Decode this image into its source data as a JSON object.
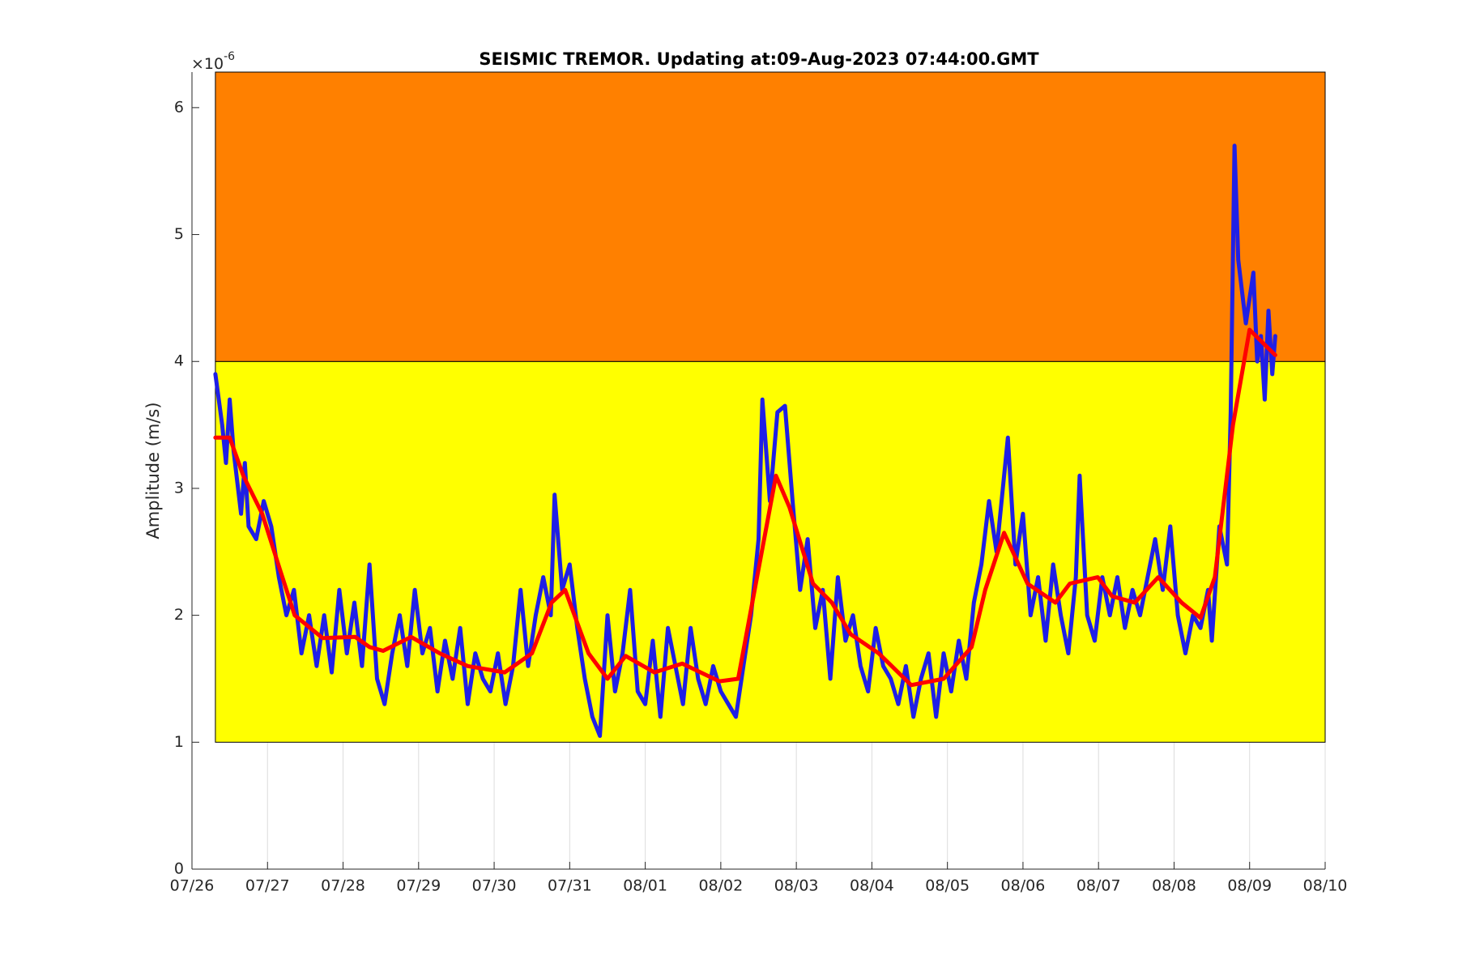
{
  "chart_data": {
    "type": "line",
    "title": "SEISMIC TREMOR. Updating at:09-Aug-2023 07:44:00.GMT",
    "ylabel": "Amplitude (m/s)",
    "y_multiplier": "×10",
    "y_exponent": "-6",
    "xlim": [
      0,
      15
    ],
    "xticks": [
      {
        "value": 0,
        "label": "07/26"
      },
      {
        "value": 1,
        "label": "07/27"
      },
      {
        "value": 2,
        "label": "07/28"
      },
      {
        "value": 3,
        "label": "07/29"
      },
      {
        "value": 4,
        "label": "07/30"
      },
      {
        "value": 5,
        "label": "07/31"
      },
      {
        "value": 6,
        "label": "08/01"
      },
      {
        "value": 7,
        "label": "08/02"
      },
      {
        "value": 8,
        "label": "08/03"
      },
      {
        "value": 9,
        "label": "08/04"
      },
      {
        "value": 10,
        "label": "08/05"
      },
      {
        "value": 11,
        "label": "08/06"
      },
      {
        "value": 12,
        "label": "08/07"
      },
      {
        "value": 13,
        "label": "08/08"
      },
      {
        "value": 14,
        "label": "08/09"
      },
      {
        "value": 15,
        "label": "08/10"
      }
    ],
    "ylim": [
      0,
      6.28
    ],
    "yticks": [
      0,
      1,
      2,
      3,
      4,
      5,
      6
    ],
    "xgrid": true,
    "bands": [
      {
        "from": 1,
        "to": 4,
        "xlim": [
          0.31,
          15
        ],
        "color": "#ffff00"
      },
      {
        "from": 4,
        "to": 6.28,
        "xlim": [
          0.31,
          15
        ],
        "color": "#ff8000"
      }
    ],
    "series": [
      {
        "color": "#1f1fe6",
        "width": 5,
        "x": [
          0.31,
          0.4,
          0.45,
          0.5,
          0.55,
          0.65,
          0.7,
          0.75,
          0.85,
          0.95,
          1.05,
          1.15,
          1.25,
          1.35,
          1.45,
          1.55,
          1.65,
          1.75,
          1.85,
          1.95,
          2.05,
          2.15,
          2.25,
          2.35,
          2.45,
          2.55,
          2.65,
          2.75,
          2.85,
          2.95,
          3.05,
          3.15,
          3.25,
          3.35,
          3.45,
          3.55,
          3.65,
          3.75,
          3.85,
          3.95,
          4.05,
          4.15,
          4.25,
          4.35,
          4.45,
          4.55,
          4.65,
          4.75,
          4.8,
          4.9,
          5.0,
          5.1,
          5.2,
          5.3,
          5.4,
          5.5,
          5.6,
          5.7,
          5.8,
          5.9,
          6.0,
          6.1,
          6.2,
          6.3,
          6.4,
          6.5,
          6.6,
          6.7,
          6.8,
          6.9,
          7.0,
          7.1,
          7.2,
          7.3,
          7.4,
          7.5,
          7.55,
          7.65,
          7.75,
          7.85,
          7.95,
          8.05,
          8.15,
          8.25,
          8.35,
          8.45,
          8.55,
          8.65,
          8.75,
          8.85,
          8.95,
          9.05,
          9.15,
          9.25,
          9.35,
          9.45,
          9.55,
          9.65,
          9.75,
          9.85,
          9.95,
          10.05,
          10.15,
          10.25,
          10.35,
          10.45,
          10.55,
          10.65,
          10.8,
          10.9,
          11.0,
          11.1,
          11.2,
          11.3,
          11.4,
          11.5,
          11.6,
          11.7,
          11.75,
          11.85,
          11.95,
          12.05,
          12.15,
          12.25,
          12.35,
          12.45,
          12.55,
          12.65,
          12.75,
          12.85,
          12.95,
          13.05,
          13.15,
          13.25,
          13.35,
          13.45,
          13.5,
          13.6,
          13.7,
          13.75,
          13.8,
          13.85,
          13.95,
          14.05,
          14.1,
          14.15,
          14.2,
          14.25,
          14.3,
          14.34
        ],
        "values": [
          3.9,
          3.5,
          3.2,
          3.7,
          3.3,
          2.8,
          3.2,
          2.7,
          2.6,
          2.9,
          2.7,
          2.3,
          2.0,
          2.2,
          1.7,
          2.0,
          1.6,
          2.0,
          1.55,
          2.2,
          1.7,
          2.1,
          1.6,
          2.4,
          1.5,
          1.3,
          1.7,
          2.0,
          1.6,
          2.2,
          1.7,
          1.9,
          1.4,
          1.8,
          1.5,
          1.9,
          1.3,
          1.7,
          1.5,
          1.4,
          1.7,
          1.3,
          1.6,
          2.2,
          1.6,
          2.0,
          2.3,
          2.0,
          2.95,
          2.2,
          2.4,
          1.9,
          1.5,
          1.2,
          1.05,
          2.0,
          1.4,
          1.7,
          2.2,
          1.4,
          1.3,
          1.8,
          1.2,
          1.9,
          1.6,
          1.3,
          1.9,
          1.5,
          1.3,
          1.6,
          1.4,
          1.3,
          1.2,
          1.6,
          2.0,
          2.6,
          3.7,
          2.9,
          3.6,
          3.65,
          2.9,
          2.2,
          2.6,
          1.9,
          2.2,
          1.5,
          2.3,
          1.8,
          2.0,
          1.6,
          1.4,
          1.9,
          1.6,
          1.5,
          1.3,
          1.6,
          1.2,
          1.5,
          1.7,
          1.2,
          1.7,
          1.4,
          1.8,
          1.5,
          2.1,
          2.4,
          2.9,
          2.5,
          3.4,
          2.4,
          2.8,
          2.0,
          2.3,
          1.8,
          2.4,
          2.0,
          1.7,
          2.3,
          3.1,
          2.0,
          1.8,
          2.3,
          2.0,
          2.3,
          1.9,
          2.2,
          2.0,
          2.3,
          2.6,
          2.2,
          2.7,
          2.0,
          1.7,
          2.0,
          1.9,
          2.2,
          1.8,
          2.7,
          2.4,
          3.6,
          5.7,
          4.8,
          4.3,
          4.7,
          4.0,
          4.2,
          3.7,
          4.4,
          3.9,
          4.2
        ]
      },
      {
        "color": "#ff0000",
        "width": 5,
        "x": [
          0.31,
          0.5,
          0.68,
          0.93,
          1.17,
          1.36,
          1.73,
          2.16,
          2.35,
          2.53,
          2.9,
          3.28,
          3.65,
          4.14,
          4.5,
          4.76,
          4.94,
          5.25,
          5.5,
          5.74,
          6.12,
          6.49,
          6.98,
          7.23,
          7.48,
          7.73,
          7.91,
          8.22,
          8.47,
          8.72,
          9.09,
          9.52,
          9.95,
          10.32,
          10.5,
          10.75,
          11.06,
          11.43,
          11.62,
          11.99,
          12.18,
          12.48,
          12.79,
          13.1,
          13.35,
          13.54,
          13.78,
          14.0,
          14.34
        ],
        "values": [
          3.4,
          3.4,
          3.1,
          2.8,
          2.35,
          2.0,
          1.82,
          1.83,
          1.75,
          1.72,
          1.83,
          1.7,
          1.6,
          1.55,
          1.7,
          2.1,
          2.2,
          1.7,
          1.5,
          1.68,
          1.55,
          1.62,
          1.48,
          1.5,
          2.3,
          3.1,
          2.85,
          2.25,
          2.1,
          1.85,
          1.7,
          1.45,
          1.5,
          1.75,
          2.2,
          2.65,
          2.25,
          2.1,
          2.25,
          2.3,
          2.15,
          2.1,
          2.3,
          2.1,
          1.98,
          2.3,
          3.5,
          4.25,
          4.05
        ]
      }
    ]
  }
}
